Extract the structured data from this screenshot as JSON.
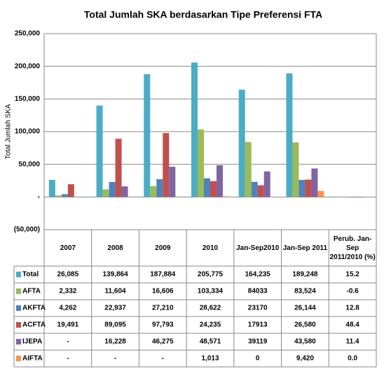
{
  "chart_data": {
    "type": "bar",
    "title": "Total Jumlah SKA berdasarkan Tipe Preferensi FTA",
    "y_label": "Total Jumlah SKA",
    "categories": [
      "2007",
      "2008",
      "2009",
      "2010",
      "Jan-Sep2010",
      "Jan-Sep 2011",
      "Perub. Jan-Sep 2011/2010 (%)"
    ],
    "ylim": [
      -50000,
      250000
    ],
    "yticks": [
      {
        "value": -50000,
        "label": "(50,000)"
      },
      {
        "value": 0,
        "label": "-"
      },
      {
        "value": 50000,
        "label": "50,000"
      },
      {
        "value": 100000,
        "label": "100,000"
      },
      {
        "value": 150000,
        "label": "150,000"
      },
      {
        "value": 200000,
        "label": "200,000"
      },
      {
        "value": 250000,
        "label": "250,000"
      }
    ],
    "grid": true,
    "series": [
      {
        "name": "Total",
        "color": "#4bacc6",
        "values": [
          26085,
          139864,
          187884,
          205775,
          164235,
          189248,
          15.2
        ],
        "value_labels": [
          "26,085",
          "139,864",
          "187,884",
          "205,775",
          "164,235",
          "189,248",
          "15.2"
        ]
      },
      {
        "name": "AFTA",
        "color": "#9bbb59",
        "values": [
          2332,
          11604,
          16606,
          103334,
          84033,
          83524,
          -0.6
        ],
        "value_labels": [
          "2,332",
          "11,604",
          "16,606",
          "103,334",
          "84033",
          "83,524",
          "-0.6"
        ]
      },
      {
        "name": "AKFTA",
        "color": "#4f81bd",
        "values": [
          4262,
          22937,
          27210,
          28622,
          23170,
          26144,
          12.8
        ],
        "value_labels": [
          "4,262",
          "22,937",
          "27,210",
          "28,622",
          "23170",
          "26,144",
          "12.8"
        ]
      },
      {
        "name": "ACFTA",
        "color": "#c0504d",
        "values": [
          19491,
          89095,
          97793,
          24235,
          17913,
          26580,
          48.4
        ],
        "value_labels": [
          "19,491",
          "89,095",
          "97,793",
          "24,235",
          "17913",
          "26,580",
          "48.4"
        ]
      },
      {
        "name": "IJEPA",
        "color": "#8064a2",
        "values": [
          null,
          16228,
          46275,
          48571,
          39119,
          43580,
          11.4
        ],
        "value_labels": [
          "-",
          "16,228",
          "46,275",
          "48,571",
          "39119",
          "43,580",
          "11.4"
        ]
      },
      {
        "name": "AIFTA",
        "color": "#f79646",
        "values": [
          null,
          null,
          null,
          1013,
          0,
          9420,
          0.0
        ],
        "value_labels": [
          "-",
          "-",
          "-",
          "1,013",
          "0",
          "9,420",
          "0.0"
        ]
      }
    ]
  }
}
